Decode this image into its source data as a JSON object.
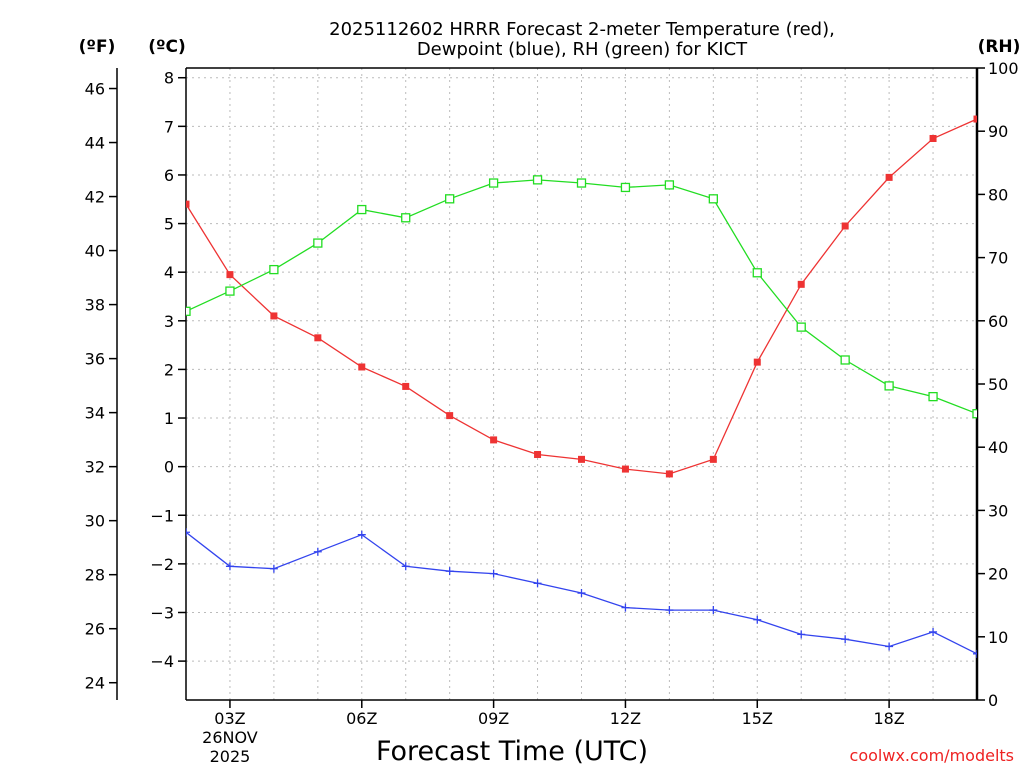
{
  "chart_data": {
    "type": "line",
    "title_lines": [
      "2025112602 HRRR Forecast 2-meter Temperature (red),",
      "Dewpoint (blue), RH (green) for KICT"
    ],
    "xlabel": "Forecast Time (UTC)",
    "credit": "coolwx.com/modelts",
    "units": {
      "fahrenheit": "(ºF)",
      "celsius": "(ºC)",
      "rh": "(RH)"
    },
    "x": [
      2,
      3,
      4,
      5,
      6,
      7,
      8,
      9,
      10,
      11,
      12,
      13,
      14,
      15,
      16,
      17,
      18,
      19,
      20
    ],
    "xlim": [
      2,
      20
    ],
    "x_ticks": [
      {
        "x": 3,
        "label": "03Z",
        "sub": [
          "26NOV",
          "2025"
        ]
      },
      {
        "x": 6,
        "label": "06Z",
        "sub": []
      },
      {
        "x": 9,
        "label": "09Z",
        "sub": []
      },
      {
        "x": 12,
        "label": "12Z",
        "sub": []
      },
      {
        "x": 15,
        "label": "15Z",
        "sub": []
      },
      {
        "x": 18,
        "label": "18Z",
        "sub": []
      }
    ],
    "celsius_axis": {
      "ylim": [
        -4.8,
        8.2
      ],
      "ticks": [
        "-4",
        "-3",
        "-2",
        "-1",
        "0",
        "1",
        "2",
        "3",
        "4",
        "5",
        "6",
        "7",
        "8"
      ]
    },
    "fahrenheit_axis": {
      "ylim": [
        23.36,
        46.76
      ],
      "ticks": [
        "24",
        "26",
        "28",
        "30",
        "32",
        "34",
        "36",
        "38",
        "40",
        "42",
        "44",
        "46"
      ]
    },
    "rh_axis": {
      "ylim": [
        0,
        100
      ],
      "ticks": [
        "0",
        "10",
        "20",
        "30",
        "40",
        "50",
        "60",
        "70",
        "80",
        "90",
        "100"
      ]
    },
    "series": [
      {
        "name": "Temperature",
        "axis": "celsius",
        "color": "#ee3333",
        "marker": "filled-square",
        "values": [
          5.4,
          3.95,
          3.1,
          2.65,
          2.05,
          1.65,
          1.05,
          0.55,
          0.25,
          0.15,
          -0.05,
          -0.15,
          0.15,
          2.15,
          3.75,
          4.95,
          5.95,
          6.75,
          7.15
        ]
      },
      {
        "name": "Dewpoint",
        "axis": "celsius",
        "color": "#3344ee",
        "marker": "plus",
        "values": [
          -1.35,
          -2.05,
          -2.1,
          -1.75,
          -1.4,
          -2.05,
          -2.15,
          -2.2,
          -2.4,
          -2.6,
          -2.9,
          -2.95,
          -2.95,
          -3.15,
          -3.45,
          -3.55,
          -3.7,
          -3.4,
          -3.85
        ]
      },
      {
        "name": "RH",
        "axis": "rh",
        "color": "#22dd22",
        "marker": "open-square",
        "values": [
          61.5,
          64.7,
          68.1,
          72.3,
          77.6,
          76.3,
          79.3,
          81.8,
          82.3,
          81.8,
          81.1,
          81.5,
          79.3,
          67.6,
          59.0,
          53.8,
          49.7,
          48.0,
          45.3
        ]
      }
    ]
  }
}
